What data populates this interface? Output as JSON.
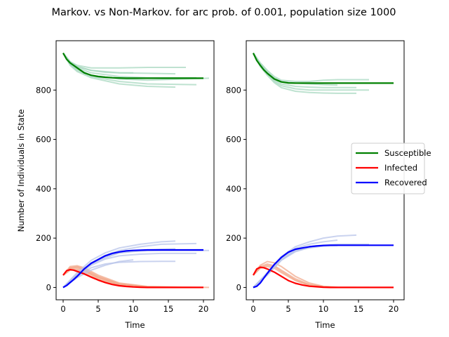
{
  "suptitle": "Markov. vs Non-Markov. for arc prob. of 0.001, population size 1000",
  "chart_data": [
    {
      "type": "line",
      "panel": "left",
      "xlabel": "Time",
      "ylabel": "Number of Individuals in State",
      "xlim": [
        -1,
        21.5
      ],
      "ylim": [
        -50,
        1000
      ],
      "xticks": [
        0,
        5,
        10,
        15,
        20
      ],
      "yticks": [
        0,
        200,
        400,
        600,
        800
      ],
      "series": [
        {
          "name": "Susceptible",
          "color": "#008000",
          "x": [
            0,
            0.5,
            1,
            1.5,
            2,
            3,
            4,
            5,
            6,
            7,
            8,
            9,
            10,
            11,
            12,
            14,
            16,
            18,
            20
          ],
          "y": [
            950,
            925,
            910,
            900,
            890,
            870,
            860,
            855,
            852,
            850,
            849,
            848,
            848,
            848,
            848,
            848,
            848,
            848,
            848
          ]
        },
        {
          "name": "Infected",
          "color": "#ff0000",
          "x": [
            0,
            0.5,
            1,
            1.5,
            2,
            3,
            4,
            5,
            6,
            7,
            8,
            9,
            10,
            11,
            12,
            14,
            16,
            18,
            20
          ],
          "y": [
            50,
            68,
            72,
            70,
            65,
            55,
            42,
            30,
            20,
            12,
            7,
            4,
            2,
            1,
            0,
            0,
            0,
            0,
            0
          ]
        },
        {
          "name": "Recovered",
          "color": "#0000ff",
          "x": [
            0,
            0.5,
            1,
            1.5,
            2,
            3,
            4,
            5,
            6,
            7,
            8,
            9,
            10,
            11,
            12,
            14,
            16,
            18,
            20
          ],
          "y": [
            0,
            8,
            20,
            32,
            45,
            75,
            98,
            113,
            128,
            138,
            144,
            148,
            150,
            151,
            152,
            152,
            152,
            152,
            152
          ]
        }
      ],
      "simulation_runs": {
        "susceptible": [
          {
            "x": [
              0,
              1,
              2,
              4,
              8,
              12,
              17.5
            ],
            "y": [
              950,
              915,
              900,
              890,
              890,
              892,
              892
            ]
          },
          {
            "x": [
              0,
              1,
              2,
              4,
              8,
              12,
              16
            ],
            "y": [
              950,
              912,
              895,
              880,
              870,
              868,
              866
            ]
          },
          {
            "x": [
              0,
              1,
              2,
              4,
              8,
              12,
              19
            ],
            "y": [
              950,
              910,
              890,
              870,
              855,
              850,
              850
            ]
          },
          {
            "x": [
              0,
              1,
              2,
              4,
              8,
              12,
              20.8
            ],
            "y": [
              950,
              905,
              885,
              860,
              845,
              840,
              848
            ]
          },
          {
            "x": [
              0,
              1,
              2,
              4,
              8,
              12,
              19
            ],
            "y": [
              950,
              905,
              880,
              855,
              835,
              825,
              822
            ]
          },
          {
            "x": [
              0,
              1,
              2,
              4,
              8,
              12,
              16
            ],
            "y": [
              950,
              900,
              875,
              850,
              825,
              815,
              812
            ]
          },
          {
            "x": [
              0,
              1,
              2,
              4,
              6,
              8,
              10
            ],
            "y": [
              950,
              915,
              895,
              880,
              872,
              870,
              870
            ]
          }
        ],
        "infected": [
          {
            "x": [
              0,
              1,
              2,
              3,
              5,
              8,
              12,
              16
            ],
            "y": [
              50,
              80,
              85,
              75,
              45,
              15,
              3,
              0
            ]
          },
          {
            "x": [
              0,
              1,
              2,
              3,
              5,
              8,
              12,
              20.8
            ],
            "y": [
              50,
              70,
              72,
              65,
              40,
              12,
              2,
              0
            ]
          },
          {
            "x": [
              0,
              1,
              2,
              3,
              5,
              8,
              12,
              16
            ],
            "y": [
              50,
              75,
              78,
              70,
              35,
              10,
              1,
              0
            ]
          },
          {
            "x": [
              0,
              1,
              2,
              3,
              5,
              8,
              12,
              19
            ],
            "y": [
              50,
              85,
              88,
              80,
              50,
              18,
              4,
              0
            ]
          },
          {
            "x": [
              0,
              1,
              2,
              3,
              5,
              8,
              10
            ],
            "y": [
              50,
              72,
              70,
              60,
              30,
              8,
              2
            ]
          },
          {
            "x": [
              0,
              1,
              2,
              3,
              5,
              8,
              12,
              17.5
            ],
            "y": [
              50,
              78,
              82,
              72,
              42,
              14,
              3,
              0
            ]
          }
        ],
        "recovered": [
          {
            "x": [
              0,
              2,
              4,
              6,
              8,
              11,
              14,
              16
            ],
            "y": [
              0,
              60,
              110,
              140,
              160,
              175,
              185,
              188
            ]
          },
          {
            "x": [
              0,
              2,
              4,
              6,
              8,
              11,
              14,
              19
            ],
            "y": [
              0,
              55,
              100,
              130,
              150,
              165,
              175,
              178
            ]
          },
          {
            "x": [
              0,
              2,
              4,
              6,
              8,
              11,
              14,
              16
            ],
            "y": [
              0,
              50,
              95,
              120,
              140,
              150,
              155,
              157
            ]
          },
          {
            "x": [
              0,
              2,
              4,
              6,
              8,
              11,
              14,
              20.8
            ],
            "y": [
              0,
              52,
              98,
              125,
              140,
              148,
              150,
              150
            ]
          },
          {
            "x": [
              0,
              2,
              4,
              6,
              8,
              11,
              14,
              19
            ],
            "y": [
              0,
              48,
              90,
              115,
              128,
              135,
              138,
              138
            ]
          },
          {
            "x": [
              0,
              2,
              4,
              6,
              8,
              11,
              14,
              16
            ],
            "y": [
              0,
              45,
              80,
              95,
              102,
              105,
              106,
              106
            ]
          },
          {
            "x": [
              0,
              2,
              4,
              6,
              8,
              10
            ],
            "y": [
              0,
              40,
              70,
              90,
              105,
              112
            ]
          }
        ]
      }
    },
    {
      "type": "line",
      "panel": "right",
      "xlabel": "Time",
      "xlim": [
        -1,
        21.5
      ],
      "ylim": [
        -50,
        1000
      ],
      "xticks": [
        0,
        5,
        10,
        15,
        20
      ],
      "yticks": [
        0,
        200,
        400,
        600,
        800
      ],
      "series": [
        {
          "name": "Susceptible",
          "color": "#008000",
          "x": [
            0,
            0.5,
            1,
            1.5,
            2,
            3,
            4,
            5,
            6,
            7,
            8,
            10,
            12,
            14,
            16,
            18,
            20
          ],
          "y": [
            950,
            920,
            900,
            882,
            868,
            845,
            833,
            829,
            828,
            828,
            828,
            828,
            828,
            828,
            828,
            828,
            828
          ]
        },
        {
          "name": "Infected",
          "color": "#ff0000",
          "x": [
            0,
            0.5,
            1,
            1.5,
            2,
            3,
            4,
            5,
            6,
            7,
            8,
            9,
            10,
            11,
            12,
            14,
            16,
            18,
            20
          ],
          "y": [
            50,
            75,
            82,
            80,
            75,
            62,
            45,
            28,
            17,
            10,
            5,
            3,
            1,
            0,
            0,
            0,
            0,
            0,
            0
          ]
        },
        {
          "name": "Recovered",
          "color": "#0000ff",
          "x": [
            0,
            0.5,
            1,
            1.5,
            2,
            3,
            4,
            5,
            6,
            7,
            8,
            9,
            10,
            11,
            12,
            14,
            16,
            18,
            20
          ],
          "y": [
            0,
            5,
            18,
            38,
            57,
            93,
            122,
            143,
            155,
            160,
            165,
            168,
            170,
            171,
            171,
            171,
            171,
            171,
            171
          ]
        }
      ],
      "simulation_runs": {
        "susceptible": [
          {
            "x": [
              0,
              1,
              2,
              3,
              4,
              6,
              8,
              10,
              12,
              14.7
            ],
            "y": [
              950,
              905,
              870,
              840,
              825,
              815,
              812,
              810,
              810,
              810
            ]
          },
          {
            "x": [
              0,
              1,
              2,
              3,
              4,
              6,
              8,
              10,
              12,
              16.5
            ],
            "y": [
              950,
              900,
              865,
              835,
              818,
              805,
              800,
              800,
              800,
              800
            ]
          },
          {
            "x": [
              0,
              1,
              2,
              3,
              4,
              6,
              8,
              10,
              12,
              14.7
            ],
            "y": [
              950,
              895,
              860,
              830,
              810,
              795,
              790,
              788,
              787,
              787
            ]
          },
          {
            "x": [
              0,
              1,
              2,
              3,
              4,
              6,
              8,
              10,
              12,
              16.5
            ],
            "y": [
              950,
              910,
              880,
              855,
              840,
              835,
              835,
              840,
              842,
              842
            ]
          },
          {
            "x": [
              0,
              1,
              2,
              3,
              4,
              6,
              8,
              10,
              12
            ],
            "y": [
              950,
              908,
              875,
              850,
              835,
              828,
              825,
              822,
              820
            ]
          }
        ],
        "infected": [
          {
            "x": [
              0,
              1,
              2,
              3,
              4,
              6,
              8,
              10,
              12
            ],
            "y": [
              50,
              90,
              105,
              100,
              85,
              45,
              18,
              5,
              1
            ]
          },
          {
            "x": [
              0,
              1,
              2,
              3,
              4,
              6,
              8,
              10,
              12,
              14.7
            ],
            "y": [
              50,
              85,
              95,
              88,
              70,
              35,
              12,
              3,
              1,
              0
            ]
          },
          {
            "x": [
              0,
              1,
              2,
              3,
              4,
              6,
              8,
              10,
              12,
              16.5
            ],
            "y": [
              50,
              80,
              90,
              85,
              65,
              30,
              10,
              2,
              0,
              0
            ]
          },
          {
            "x": [
              0,
              1,
              2,
              3,
              4,
              6,
              8,
              10
            ],
            "y": [
              50,
              78,
              85,
              78,
              60,
              28,
              8,
              2
            ]
          }
        ],
        "recovered": [
          {
            "x": [
              0,
              2,
              4,
              6,
              8,
              10,
              12,
              14.7
            ],
            "y": [
              0,
              60,
              125,
              165,
              185,
              200,
              208,
              212
            ]
          },
          {
            "x": [
              0,
              2,
              4,
              6,
              8,
              10,
              12
            ],
            "y": [
              0,
              55,
              120,
              158,
              175,
              185,
              192
            ]
          },
          {
            "x": [
              0,
              2,
              4,
              6,
              8,
              10,
              12,
              16.5
            ],
            "y": [
              0,
              55,
              115,
              150,
              165,
              172,
              175,
              175
            ]
          },
          {
            "x": [
              0,
              2,
              4,
              6,
              8,
              10,
              12,
              14.7
            ],
            "y": [
              0,
              50,
              110,
              145,
              162,
              170,
              172,
              172
            ]
          },
          {
            "x": [
              0,
              2,
              4,
              6,
              8,
              10,
              12
            ],
            "y": [
              0,
              52,
              112,
              148,
              160,
              168,
              170
            ]
          }
        ]
      }
    }
  ],
  "legend": {
    "placement": "right of right panel, vertically centered",
    "entries": [
      {
        "label": "Susceptible",
        "color": "#008000"
      },
      {
        "label": "Infected",
        "color": "#ff0000"
      },
      {
        "label": "Recovered",
        "color": "#0000ff"
      }
    ]
  },
  "run_colors": {
    "susceptible": "#a8d8c0",
    "infected": "#f2a98c",
    "recovered": "#b8c4ea"
  }
}
